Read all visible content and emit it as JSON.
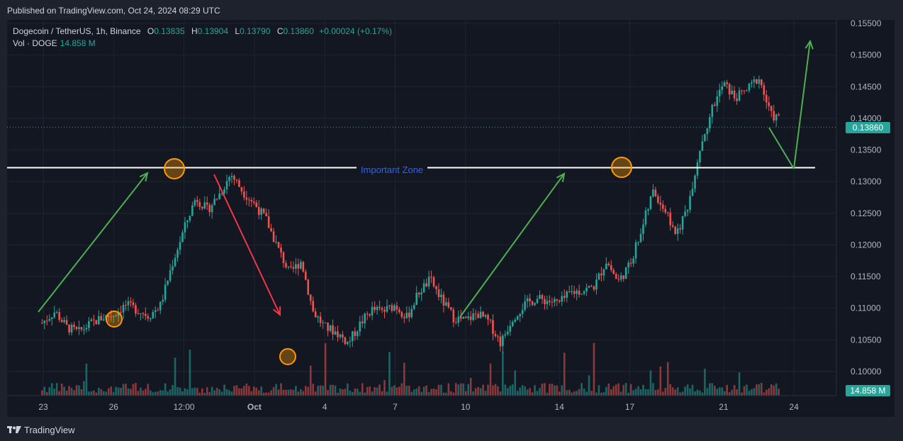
{
  "header": {
    "published": "Published on TradingView.com, Oct 24, 2024 08:29 UTC"
  },
  "legend": {
    "symbol": "Dogecoin / TetherUS, 1h, Binance",
    "open_label": "O",
    "open": "0.13835",
    "high_label": "H",
    "high": "0.13904",
    "low_label": "L",
    "low": "0.13790",
    "close_label": "C",
    "close": "0.13860",
    "change": "+0.00024 (+0.17%)",
    "vol_label": "Vol · DOGE",
    "vol_value": "14.858 M"
  },
  "footer": {
    "brand": "TradingView"
  },
  "price_tag": "0.13860",
  "volume_tag": "14.858 M",
  "colors": {
    "up": "#26a69a",
    "down": "#ef5350",
    "bg": "#131722",
    "arrow_up": "#4caf50",
    "arrow_down": "#f23645",
    "zone_text": "#2962ff",
    "circle": "#ff9800"
  },
  "chart_data": {
    "type": "line",
    "ylim": [
      0.095,
      0.156
    ],
    "y_ticks": [
      "0.15500",
      "0.15000",
      "0.14500",
      "0.14000",
      "0.13500",
      "0.13000",
      "0.12500",
      "0.12000",
      "0.11500",
      "0.11000",
      "0.10500",
      "0.10000"
    ],
    "y_tick_values": [
      0.155,
      0.15,
      0.145,
      0.14,
      0.135,
      0.13,
      0.125,
      0.12,
      0.115,
      0.11,
      0.105,
      0.1
    ],
    "x_ticks": [
      "23",
      "26",
      "12:00",
      "Oct",
      "4",
      "7",
      "10",
      "14",
      "17",
      "21",
      "24"
    ],
    "series": [
      {
        "x": [
          22.9,
          23.5,
          24,
          24.5,
          25,
          25.5,
          26,
          26.5,
          27,
          27.5,
          28,
          28.5,
          29,
          29.5,
          30,
          30.5,
          31,
          31.5,
          32,
          32.5,
          33,
          33.5,
          34,
          34.5,
          35,
          35.5,
          36,
          36.5,
          37,
          37.5,
          38,
          38.5,
          39,
          39.5,
          40,
          40.5,
          41,
          41.5,
          42,
          42.5,
          43,
          43.5,
          44,
          44.5,
          45,
          45.5,
          46,
          46.5,
          47,
          47.5,
          48,
          48.5,
          49,
          49.5,
          50,
          50.5,
          51,
          51.5,
          52,
          52.5,
          53,
          53.5,
          54,
          54.5
        ],
        "values": [
          0.1075,
          0.1095,
          0.107,
          0.1062,
          0.1075,
          0.1085,
          0.109,
          0.1105,
          0.1098,
          0.1088,
          0.1105,
          0.117,
          0.1225,
          0.1275,
          0.1255,
          0.128,
          0.1312,
          0.1285,
          0.1265,
          0.124,
          0.1195,
          0.1155,
          0.1175,
          0.1095,
          0.107,
          0.1062,
          0.1045,
          0.1075,
          0.1098,
          0.1095,
          0.1105,
          0.1085,
          0.1125,
          0.1145,
          0.1112,
          0.1085,
          0.108,
          0.1092,
          0.1078,
          0.1045,
          0.1085,
          0.1105,
          0.1115,
          0.1112,
          0.1108,
          0.1125,
          0.1128,
          0.1135,
          0.1175,
          0.1142,
          0.1168,
          0.1225,
          0.1285,
          0.1255,
          0.1215,
          0.1265,
          0.1355,
          0.1415,
          0.1455,
          0.1432,
          0.1445,
          0.1465,
          0.1405,
          0.1398
        ]
      }
    ],
    "annotations": [
      {
        "type": "hline",
        "y": 0.1322,
        "label": "Important Zone"
      }
    ]
  }
}
